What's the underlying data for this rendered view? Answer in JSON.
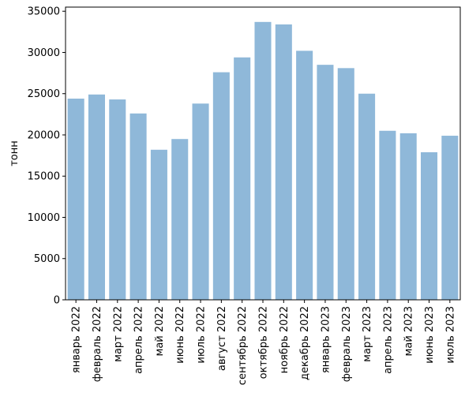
{
  "chart_data": {
    "type": "bar",
    "title": "",
    "xlabel": "",
    "ylabel": "тонн",
    "ylim": [
      0,
      35500
    ],
    "yticks": [
      0,
      5000,
      10000,
      15000,
      20000,
      25000,
      30000,
      35000
    ],
    "grid": false,
    "legend": "none",
    "bar_color": "#8fb8d9",
    "categories": [
      "январь 2022",
      "февраль 2022",
      "март 2022",
      "апрель 2022",
      "май 2022",
      "июнь 2022",
      "июль 2022",
      "август 2022",
      "сентябрь 2022",
      "октябрь 2022",
      "ноябрь 2022",
      "декабрь 2022",
      "январь 2023",
      "февраль 2023",
      "март 2023",
      "апрель 2023",
      "май 2023",
      "июнь 2023",
      "июль 2023"
    ],
    "values": [
      24400,
      24900,
      24300,
      22600,
      18200,
      19500,
      23800,
      27600,
      29400,
      33700,
      33400,
      30200,
      28500,
      28100,
      25000,
      20500,
      20200,
      17900,
      19900
    ]
  }
}
